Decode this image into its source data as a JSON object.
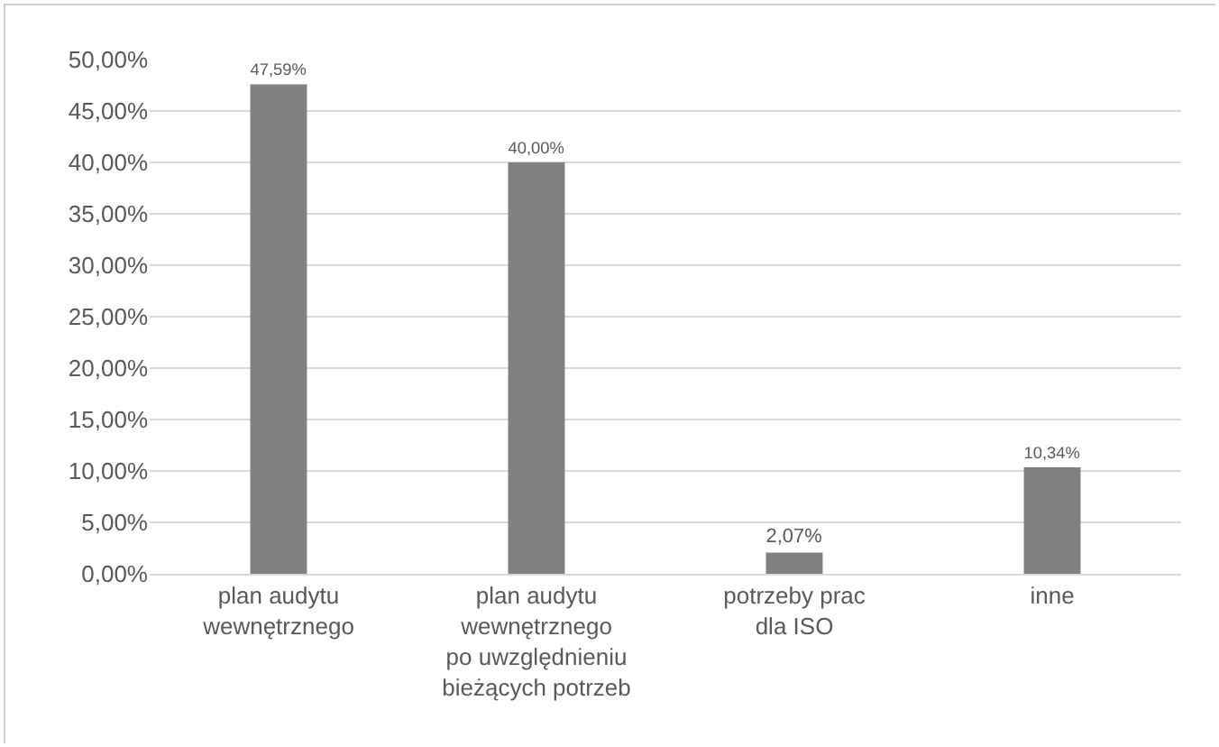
{
  "chart_data": {
    "type": "bar",
    "categories": [
      "plan audytu\nwewnętrznego",
      "plan audytu\nwewnętrznego\npo uwzględnieniu\nbieżących potrzeb",
      "potrzeby prac\ndla ISO",
      "inne"
    ],
    "values": [
      47.59,
      40.0,
      2.07,
      10.34
    ],
    "value_labels": [
      "47,59%",
      "40,00%",
      "2,07%",
      "10,34%"
    ],
    "color": "#808080",
    "ylim": [
      0,
      50
    ],
    "yticks": [
      {
        "value": 0,
        "label": "0,00%"
      },
      {
        "value": 5,
        "label": "5,00%"
      },
      {
        "value": 10,
        "label": "10,00%"
      },
      {
        "value": 15,
        "label": "15,00%"
      },
      {
        "value": 20,
        "label": "20,00%"
      },
      {
        "value": 25,
        "label": "25,00%"
      },
      {
        "value": 30,
        "label": "30,00%"
      },
      {
        "value": 35,
        "label": "35,00%"
      },
      {
        "value": 40,
        "label": "40,00%"
      },
      {
        "value": 45,
        "label": "45,00%"
      },
      {
        "value": 50,
        "label": "50,00%"
      }
    ],
    "grid": "y"
  }
}
